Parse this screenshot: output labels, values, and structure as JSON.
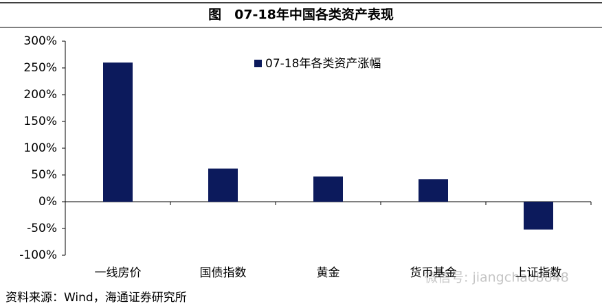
{
  "chart_data": {
    "type": "bar",
    "title": "图　07-18年中国各类资产表现",
    "categories": [
      "一线房价",
      "国债指数",
      "黄金",
      "货币基金",
      "上证指数"
    ],
    "series": [
      {
        "name": "07-18年各类资产涨幅",
        "color": "#0c1a5c",
        "values": [
          260,
          62,
          47,
          42,
          -52
        ]
      }
    ],
    "ylim": [
      -100,
      300
    ],
    "yticks": [
      {
        "value": -100,
        "label": "-100%"
      },
      {
        "value": -50,
        "label": "-50%"
      },
      {
        "value": 0,
        "label": "0%"
      },
      {
        "value": 50,
        "label": "50%"
      },
      {
        "value": 100,
        "label": "100%"
      },
      {
        "value": 150,
        "label": "150%"
      },
      {
        "value": 200,
        "label": "200%"
      },
      {
        "value": 250,
        "label": "250%"
      },
      {
        "value": 300,
        "label": "300%"
      }
    ],
    "source": "资料来源：Wind，海通证券研究所",
    "watermark": "微信号: jiangchao8848"
  }
}
